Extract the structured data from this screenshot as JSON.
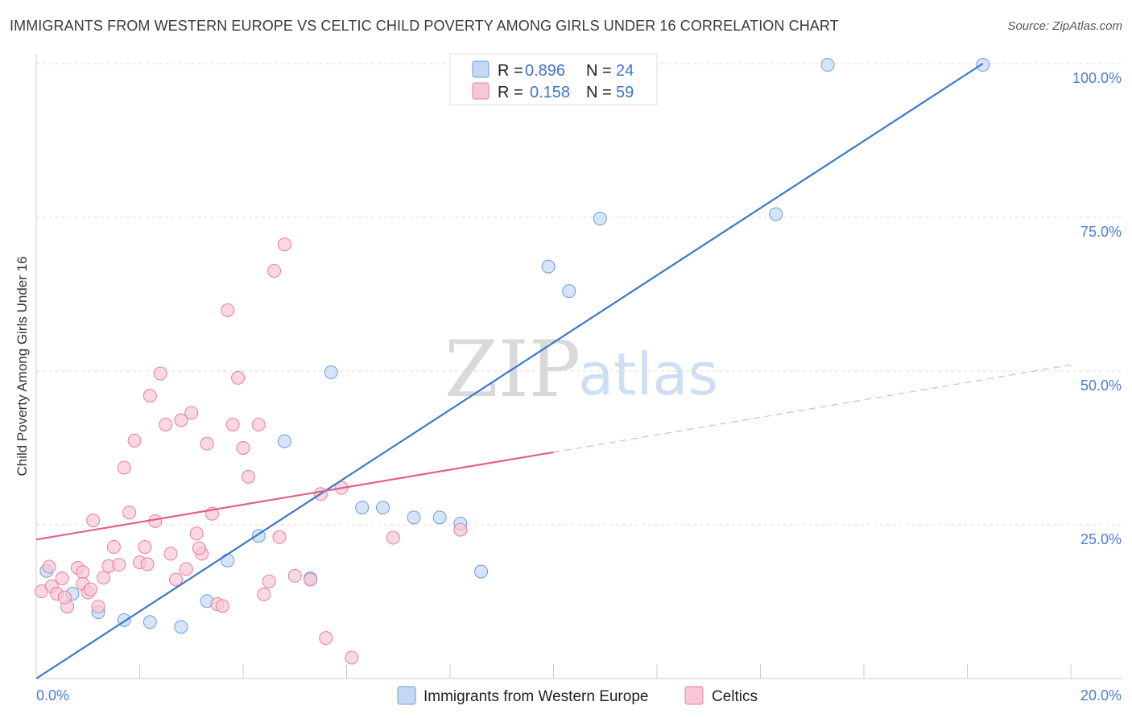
{
  "title": "IMMIGRANTS FROM WESTERN EUROPE VS CELTIC CHILD POVERTY AMONG GIRLS UNDER 16 CORRELATION CHART",
  "source": "Source: ZipAtlas.com",
  "watermark": {
    "zip": "ZIP",
    "atlas": "atlas"
  },
  "chart_data": {
    "type": "scatter",
    "xlabel": "",
    "ylabel": "Child Poverty Among Girls Under 16",
    "xlim": [
      0,
      20
    ],
    "ylim": [
      0,
      100
    ],
    "x_tick_labels": [
      {
        "value": 0,
        "label": "0.0%"
      },
      {
        "value": 20,
        "label": "20.0%"
      }
    ],
    "x_minor_ticks": [
      2,
      4,
      6,
      8,
      10,
      12,
      14,
      16,
      18
    ],
    "y_ticks": [
      {
        "value": 25,
        "label": "25.0%"
      },
      {
        "value": 50,
        "label": "50.0%"
      },
      {
        "value": 75,
        "label": "75.0%"
      },
      {
        "value": 100,
        "label": "100.0%"
      }
    ],
    "grid": "horizontal-dashed",
    "legend_position": "top-center",
    "series": [
      {
        "name": "Immigrants from Western Europe",
        "color": "#6a9de0",
        "fill": "#c5d9f5",
        "R": "0.896",
        "N": "24",
        "trend": {
          "x": [
            0,
            18.3
          ],
          "y": [
            0,
            100
          ],
          "style": "solid",
          "color": "#3b78c9"
        },
        "points": [
          [
            0.2,
            17.5
          ],
          [
            0.7,
            13.8
          ],
          [
            1.2,
            10.8
          ],
          [
            1.7,
            9.5
          ],
          [
            2.2,
            9.2
          ],
          [
            2.8,
            8.4
          ],
          [
            3.3,
            12.6
          ],
          [
            3.7,
            19.2
          ],
          [
            4.3,
            23.2
          ],
          [
            4.8,
            38.6
          ],
          [
            5.3,
            16.3
          ],
          [
            5.7,
            49.8
          ],
          [
            6.3,
            27.8
          ],
          [
            6.7,
            27.8
          ],
          [
            7.3,
            26.2
          ],
          [
            7.8,
            26.2
          ],
          [
            8.2,
            25.2
          ],
          [
            8.6,
            17.4
          ],
          [
            9.9,
            67.0
          ],
          [
            10.3,
            63.0
          ],
          [
            10.9,
            74.8
          ],
          [
            14.3,
            75.5
          ],
          [
            15.3,
            99.8
          ],
          [
            18.3,
            99.8
          ]
        ]
      },
      {
        "name": "Celtics",
        "color": "#e87ca0",
        "fill": "#f6c7d6",
        "R": "0.158",
        "N": "59",
        "trend": {
          "x": [
            0,
            10
          ],
          "y": [
            22.6,
            36.8
          ],
          "style": "solid",
          "color": "#e0608a",
          "extension": {
            "x": [
              10,
              20
            ],
            "y": [
              36.8,
              51.0
            ],
            "style": "dashed"
          }
        },
        "points": [
          [
            0.1,
            14.2
          ],
          [
            0.3,
            15.0
          ],
          [
            0.4,
            13.8
          ],
          [
            0.5,
            16.3
          ],
          [
            0.6,
            11.7
          ],
          [
            0.8,
            18.0
          ],
          [
            0.9,
            17.3
          ],
          [
            0.9,
            15.4
          ],
          [
            1.0,
            14.0
          ],
          [
            1.1,
            25.7
          ],
          [
            1.2,
            11.7
          ],
          [
            1.3,
            16.4
          ],
          [
            1.4,
            18.3
          ],
          [
            1.5,
            21.4
          ],
          [
            1.6,
            18.5
          ],
          [
            1.7,
            34.3
          ],
          [
            1.8,
            27.0
          ],
          [
            1.9,
            38.7
          ],
          [
            2.0,
            18.9
          ],
          [
            2.1,
            21.4
          ],
          [
            2.2,
            46.0
          ],
          [
            2.3,
            25.6
          ],
          [
            2.4,
            49.6
          ],
          [
            2.5,
            41.3
          ],
          [
            2.6,
            20.3
          ],
          [
            2.7,
            16.1
          ],
          [
            2.8,
            42.0
          ],
          [
            2.9,
            17.8
          ],
          [
            3.0,
            43.2
          ],
          [
            3.1,
            23.6
          ],
          [
            3.2,
            20.3
          ],
          [
            3.3,
            38.2
          ],
          [
            3.4,
            26.8
          ],
          [
            3.5,
            12.1
          ],
          [
            3.6,
            11.8
          ],
          [
            3.7,
            59.9
          ],
          [
            3.8,
            41.3
          ],
          [
            3.9,
            48.9
          ],
          [
            4.0,
            37.5
          ],
          [
            4.1,
            32.8
          ],
          [
            4.3,
            41.3
          ],
          [
            4.4,
            13.7
          ],
          [
            4.5,
            15.8
          ],
          [
            4.6,
            66.3
          ],
          [
            4.7,
            23.0
          ],
          [
            4.8,
            70.6
          ],
          [
            5.0,
            16.7
          ],
          [
            5.3,
            16.1
          ],
          [
            5.5,
            30.0
          ],
          [
            5.6,
            6.6
          ],
          [
            5.9,
            31.0
          ],
          [
            6.1,
            3.4
          ],
          [
            6.9,
            22.9
          ],
          [
            8.2,
            24.2
          ],
          [
            0.25,
            18.2
          ],
          [
            0.55,
            13.2
          ],
          [
            1.05,
            14.5
          ],
          [
            2.15,
            18.6
          ],
          [
            3.15,
            21.2
          ]
        ]
      }
    ]
  },
  "legend": {
    "r_label": "R =",
    "n_label": "N ="
  }
}
